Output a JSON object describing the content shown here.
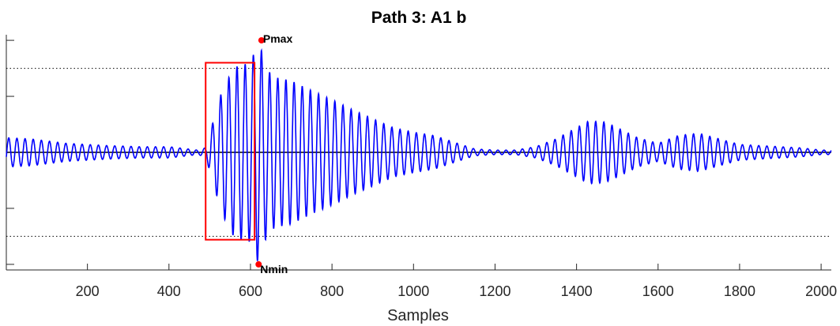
{
  "chart_data": {
    "type": "line",
    "title": "Path 3: A1 b",
    "xlabel": "Samples",
    "ylabel": "",
    "xlim": [
      1,
      2025
    ],
    "ylim": [
      -1.05,
      1.05
    ],
    "xticks": [
      200,
      400,
      600,
      800,
      1000,
      1200,
      1400,
      1600,
      1800,
      2000
    ],
    "yticks": [
      -1.0,
      -0.5,
      0.5,
      1.0
    ],
    "threshold_lines": [
      0.75,
      -0.75
    ],
    "grid": false,
    "legend": "none",
    "series": [
      {
        "color": "#0000ff",
        "description": "oscillatory waveform (period ~20 samples) with envelope",
        "envelope": {
          "x": [
            1,
            60,
            150,
            250,
            330,
            400,
            470,
            490,
            530,
            560,
            600,
            620,
            640,
            660,
            700,
            750,
            800,
            850,
            900,
            950,
            1000,
            1050,
            1100,
            1150,
            1200,
            1250,
            1300,
            1350,
            1400,
            1430,
            1470,
            1500,
            1550,
            1600,
            1650,
            1700,
            1750,
            1800,
            1850,
            1900,
            1950,
            2000,
            2025
          ],
          "y": [
            0.13,
            0.12,
            0.08,
            0.06,
            0.05,
            0.05,
            0.02,
            0.04,
            0.55,
            0.76,
            0.8,
            1.0,
            0.74,
            0.67,
            0.64,
            0.55,
            0.47,
            0.38,
            0.3,
            0.22,
            0.18,
            0.15,
            0.09,
            0.03,
            0.02,
            0.02,
            0.05,
            0.12,
            0.22,
            0.28,
            0.27,
            0.22,
            0.13,
            0.08,
            0.15,
            0.17,
            0.12,
            0.07,
            0.06,
            0.05,
            0.04,
            0.02,
            0.02
          ]
        }
      }
    ],
    "markers": [
      {
        "label": "Pmax",
        "x": 627,
        "y": 1.0,
        "color": "#ff0000"
      },
      {
        "label": "Nmin",
        "x": 620,
        "y": -1.0,
        "color": "#ff0000"
      }
    ],
    "window": {
      "x_start": 490,
      "x_end": 610,
      "y_top": 0.8,
      "y_bottom": -0.78,
      "color": "#ff0000"
    },
    "colors": {
      "signal": "#0000ff",
      "window": "#ff0000",
      "axis": "#000000",
      "zero_line": "#000000"
    }
  }
}
